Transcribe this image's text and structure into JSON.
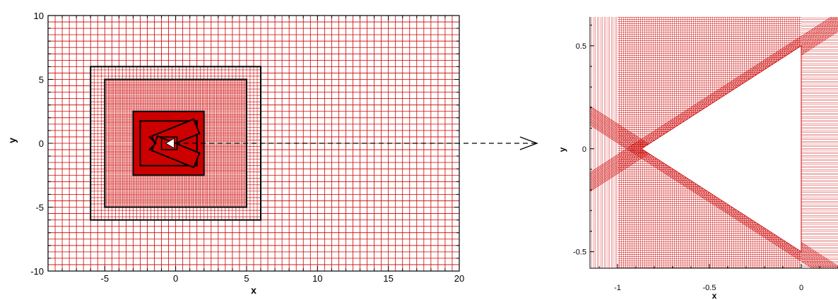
{
  "left_plot": {
    "xlabel": "x",
    "ylabel": "y",
    "xlim": [
      -9,
      20
    ],
    "ylim": [
      -10,
      10
    ],
    "xticks": [
      "-5",
      "0",
      "5",
      "10",
      "15",
      "20"
    ],
    "yticks": [
      "10",
      "5",
      "0",
      "-5",
      "-10"
    ],
    "xtick_values": [
      -5,
      0,
      5,
      10,
      15,
      20
    ],
    "ytick_values": [
      10,
      5,
      0,
      -5,
      -10
    ],
    "coarse_grid_spacing": 0.5,
    "blocks": [
      {
        "x0": -6,
        "x1": 6,
        "y0": -6,
        "y1": 6,
        "spacing": 0.25
      },
      {
        "x0": -5,
        "x1": 5,
        "y0": -5,
        "y1": 5,
        "spacing": 0.125
      },
      {
        "x0": -3,
        "x1": 2,
        "y0": -2.5,
        "y1": 2.5,
        "spacing": 0.0625
      },
      {
        "x0": -2.5,
        "x1": 1.5,
        "y0": -1.75,
        "y1": 1.75,
        "spacing": 0.03
      }
    ]
  },
  "right_plot": {
    "xlabel": "x",
    "ylabel": "y",
    "xlim": [
      -1.15,
      0.2
    ],
    "ylim": [
      -0.58,
      0.64
    ],
    "xticks": [
      "-1",
      "-0.5",
      "0"
    ],
    "yticks": [
      "0.5",
      "0",
      "-0.5"
    ],
    "xtick_values": [
      -1,
      -0.5,
      0
    ],
    "ytick_values": [
      0.5,
      0,
      -0.5
    ],
    "wedge_apex": [
      -0.87,
      0
    ],
    "wedge_top": [
      0,
      0.5
    ],
    "wedge_bottom": [
      0,
      -0.5
    ]
  },
  "colors": {
    "mesh": "#cc0000",
    "fill": "#cc0000",
    "outline": "#000000",
    "body": "#ffffff"
  }
}
